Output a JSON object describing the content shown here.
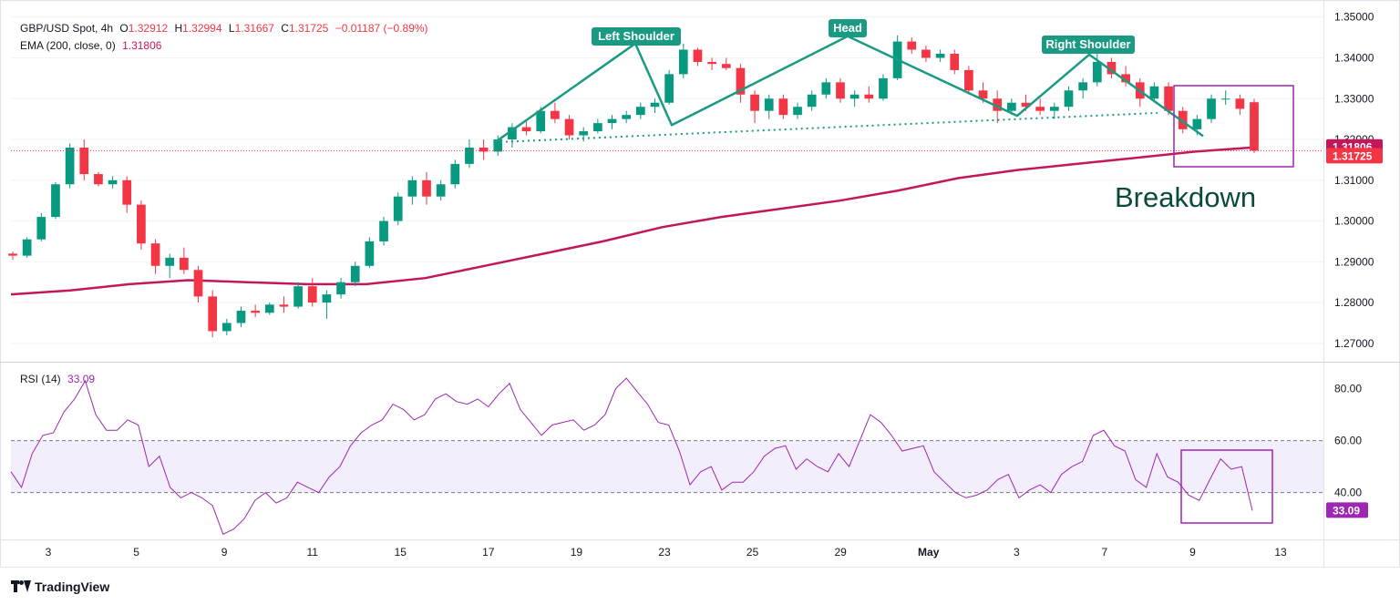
{
  "header": {
    "symbol": "GBP/USD Spot, 4h",
    "open_label": "O",
    "open": "1.32912",
    "high_label": "H",
    "high": "1.32994",
    "low_label": "L",
    "low": "1.31667",
    "close_label": "C",
    "close": "1.31725",
    "change": "−0.01187 (−0.89%)",
    "ema_label": "EMA (200, close, 0)",
    "ema_value": "1.31806",
    "rsi_label": "RSI (14)",
    "rsi_value": "33.09"
  },
  "branding": {
    "name": "TradingView"
  },
  "colors": {
    "up": "#089981",
    "down": "#f23645",
    "ema": "#c2185b",
    "rsi": "#9c27b0",
    "pattern": "#1a9a82",
    "annotation_text": "#0a4a3c",
    "box": "#9c27b0"
  },
  "chart_data": [
    {
      "type": "candlestick",
      "x_labels": [
        "3",
        "5",
        "9",
        "11",
        "15",
        "17",
        "19",
        "23",
        "25",
        "29",
        "May",
        "3",
        "7",
        "9",
        "13"
      ],
      "y_ticks": [
        "1.35000",
        "1.34000",
        "1.33000",
        "1.32000",
        "1.31000",
        "1.30000",
        "1.29000",
        "1.28000",
        "1.27000"
      ],
      "ylim": [
        1.2655,
        1.3515
      ],
      "price_tags": {
        "ema": "1.31806",
        "last": "1.31725"
      },
      "annotations": {
        "left_shoulder": "Left Shoulder",
        "head": "Head",
        "right_shoulder": "Right Shoulder",
        "breakdown": "Breakdown"
      },
      "shape_points": [
        1.3193,
        1.3435,
        1.3235,
        1.3453,
        1.3258,
        1.3408,
        1.3208
      ],
      "neckline": [
        1.3193,
        1.3265
      ],
      "ema_200": [
        1.282,
        1.283,
        1.2845,
        1.2855,
        1.285,
        1.2845,
        1.2845,
        1.286,
        1.289,
        1.292,
        1.295,
        1.2985,
        1.301,
        1.303,
        1.305,
        1.3075,
        1.3105,
        1.3125,
        1.314,
        1.3155,
        1.317,
        1.31806
      ],
      "candles": [
        [
          1.292,
          1.2925,
          1.2905,
          1.2915
        ],
        [
          1.2915,
          1.296,
          1.291,
          1.2955
        ],
        [
          1.2955,
          1.302,
          1.295,
          1.301
        ],
        [
          1.301,
          1.3095,
          1.3005,
          1.309
        ],
        [
          1.309,
          1.319,
          1.308,
          1.318
        ],
        [
          1.318,
          1.32,
          1.31,
          1.3115
        ],
        [
          1.3115,
          1.312,
          1.3085,
          1.309
        ],
        [
          1.309,
          1.311,
          1.308,
          1.31
        ],
        [
          1.31,
          1.311,
          1.302,
          1.304
        ],
        [
          1.304,
          1.305,
          1.293,
          1.2945
        ],
        [
          1.2945,
          1.2955,
          1.287,
          1.289
        ],
        [
          1.289,
          1.292,
          1.286,
          1.291
        ],
        [
          1.291,
          1.2935,
          1.287,
          1.288
        ],
        [
          1.288,
          1.289,
          1.28,
          1.2815
        ],
        [
          1.2815,
          1.283,
          1.2715,
          1.273
        ],
        [
          1.273,
          1.276,
          1.272,
          1.275
        ],
        [
          1.275,
          1.279,
          1.274,
          1.278
        ],
        [
          1.278,
          1.2795,
          1.2765,
          1.2775
        ],
        [
          1.2775,
          1.28,
          1.277,
          1.2795
        ],
        [
          1.2795,
          1.2815,
          1.2775,
          1.279
        ],
        [
          1.279,
          1.285,
          1.2785,
          1.284
        ],
        [
          1.284,
          1.286,
          1.279,
          1.28
        ],
        [
          1.28,
          1.283,
          1.276,
          1.282
        ],
        [
          1.282,
          1.286,
          1.281,
          1.285
        ],
        [
          1.285,
          1.29,
          1.284,
          1.289
        ],
        [
          1.289,
          1.296,
          1.2885,
          1.295
        ],
        [
          1.295,
          1.301,
          1.294,
          1.3
        ],
        [
          1.3,
          1.307,
          1.299,
          1.306
        ],
        [
          1.306,
          1.311,
          1.304,
          1.31
        ],
        [
          1.31,
          1.312,
          1.304,
          1.306
        ],
        [
          1.306,
          1.31,
          1.305,
          1.309
        ],
        [
          1.309,
          1.315,
          1.308,
          1.314
        ],
        [
          1.314,
          1.32,
          1.313,
          1.318
        ],
        [
          1.318,
          1.32,
          1.315,
          1.317
        ],
        [
          1.317,
          1.321,
          1.316,
          1.32
        ],
        [
          1.32,
          1.324,
          1.318,
          1.323
        ],
        [
          1.323,
          1.325,
          1.321,
          1.322
        ],
        [
          1.322,
          1.328,
          1.3215,
          1.327
        ],
        [
          1.327,
          1.329,
          1.324,
          1.325
        ],
        [
          1.325,
          1.326,
          1.32,
          1.321
        ],
        [
          1.321,
          1.323,
          1.3195,
          1.322
        ],
        [
          1.322,
          1.325,
          1.3215,
          1.324
        ],
        [
          1.324,
          1.326,
          1.3225,
          1.325
        ],
        [
          1.325,
          1.327,
          1.324,
          1.326
        ],
        [
          1.326,
          1.329,
          1.325,
          1.328
        ],
        [
          1.328,
          1.33,
          1.3265,
          1.329
        ],
        [
          1.329,
          1.337,
          1.3285,
          1.336
        ],
        [
          1.336,
          1.3435,
          1.335,
          1.342
        ],
        [
          1.342,
          1.3425,
          1.338,
          1.339
        ],
        [
          1.339,
          1.34,
          1.337,
          1.3385
        ],
        [
          1.3385,
          1.34,
          1.337,
          1.3375
        ],
        [
          1.3375,
          1.3385,
          1.329,
          1.331
        ],
        [
          1.331,
          1.332,
          1.324,
          1.327
        ],
        [
          1.327,
          1.331,
          1.325,
          1.33
        ],
        [
          1.33,
          1.331,
          1.325,
          1.326
        ],
        [
          1.326,
          1.329,
          1.325,
          1.328
        ],
        [
          1.328,
          1.332,
          1.327,
          1.331
        ],
        [
          1.331,
          1.335,
          1.33,
          1.334
        ],
        [
          1.334,
          1.335,
          1.329,
          1.33
        ],
        [
          1.33,
          1.332,
          1.328,
          1.331
        ],
        [
          1.331,
          1.333,
          1.329,
          1.33
        ],
        [
          1.33,
          1.336,
          1.3295,
          1.335
        ],
        [
          1.335,
          1.3455,
          1.3345,
          1.344
        ],
        [
          1.344,
          1.345,
          1.341,
          1.342
        ],
        [
          1.342,
          1.343,
          1.339,
          1.34
        ],
        [
          1.34,
          1.342,
          1.339,
          1.341
        ],
        [
          1.341,
          1.342,
          1.336,
          1.337
        ],
        [
          1.337,
          1.338,
          1.331,
          1.332
        ],
        [
          1.332,
          1.334,
          1.329,
          1.33
        ],
        [
          1.33,
          1.332,
          1.324,
          1.327
        ],
        [
          1.327,
          1.33,
          1.326,
          1.329
        ],
        [
          1.329,
          1.331,
          1.327,
          1.328
        ],
        [
          1.328,
          1.33,
          1.326,
          1.327
        ],
        [
          1.327,
          1.329,
          1.325,
          1.328
        ],
        [
          1.328,
          1.333,
          1.327,
          1.332
        ],
        [
          1.332,
          1.335,
          1.33,
          1.334
        ],
        [
          1.334,
          1.341,
          1.333,
          1.339
        ],
        [
          1.339,
          1.34,
          1.335,
          1.336
        ],
        [
          1.336,
          1.338,
          1.333,
          1.334
        ],
        [
          1.334,
          1.335,
          1.328,
          1.33
        ],
        [
          1.33,
          1.334,
          1.329,
          1.333
        ],
        [
          1.333,
          1.334,
          1.326,
          1.327
        ],
        [
          1.327,
          1.328,
          1.3215,
          1.3225
        ],
        [
          1.3225,
          1.326,
          1.321,
          1.325
        ],
        [
          1.325,
          1.331,
          1.324,
          1.33
        ],
        [
          1.33,
          1.332,
          1.3285,
          1.33
        ],
        [
          1.33,
          1.331,
          1.326,
          1.3275
        ],
        [
          1.32912,
          1.32994,
          1.31667,
          1.31725
        ]
      ]
    },
    {
      "type": "line",
      "name": "RSI (14)",
      "y_ticks": [
        "80.00",
        "60.00",
        "40.00"
      ],
      "ylim": [
        22,
        90
      ],
      "band": [
        40,
        60
      ],
      "last_label": "33.09",
      "values": [
        48,
        42,
        55,
        62,
        63,
        71,
        76,
        83,
        70,
        64,
        64,
        68,
        66,
        50,
        54,
        42,
        38,
        40,
        38,
        35,
        24,
        26,
        30,
        37,
        40,
        36,
        38,
        44,
        42,
        40,
        46,
        50,
        58,
        63,
        66,
        68,
        74,
        72,
        68,
        70,
        76,
        78,
        75,
        74,
        76,
        73,
        78,
        82,
        72,
        67,
        62,
        66,
        67,
        68,
        64,
        66,
        70,
        80,
        84,
        79,
        74,
        67,
        66,
        56,
        43,
        48,
        50,
        41,
        44,
        44,
        48,
        54,
        57,
        58,
        49,
        53,
        50,
        48,
        55,
        50,
        60,
        70,
        67,
        62,
        56,
        57,
        58,
        48,
        44,
        40,
        38,
        39,
        41,
        45,
        47,
        38,
        41,
        43,
        40,
        47,
        50,
        52,
        62,
        64,
        58,
        56,
        45,
        42,
        55,
        46,
        44,
        39,
        37,
        45,
        53,
        49,
        50,
        33.09
      ]
    }
  ]
}
